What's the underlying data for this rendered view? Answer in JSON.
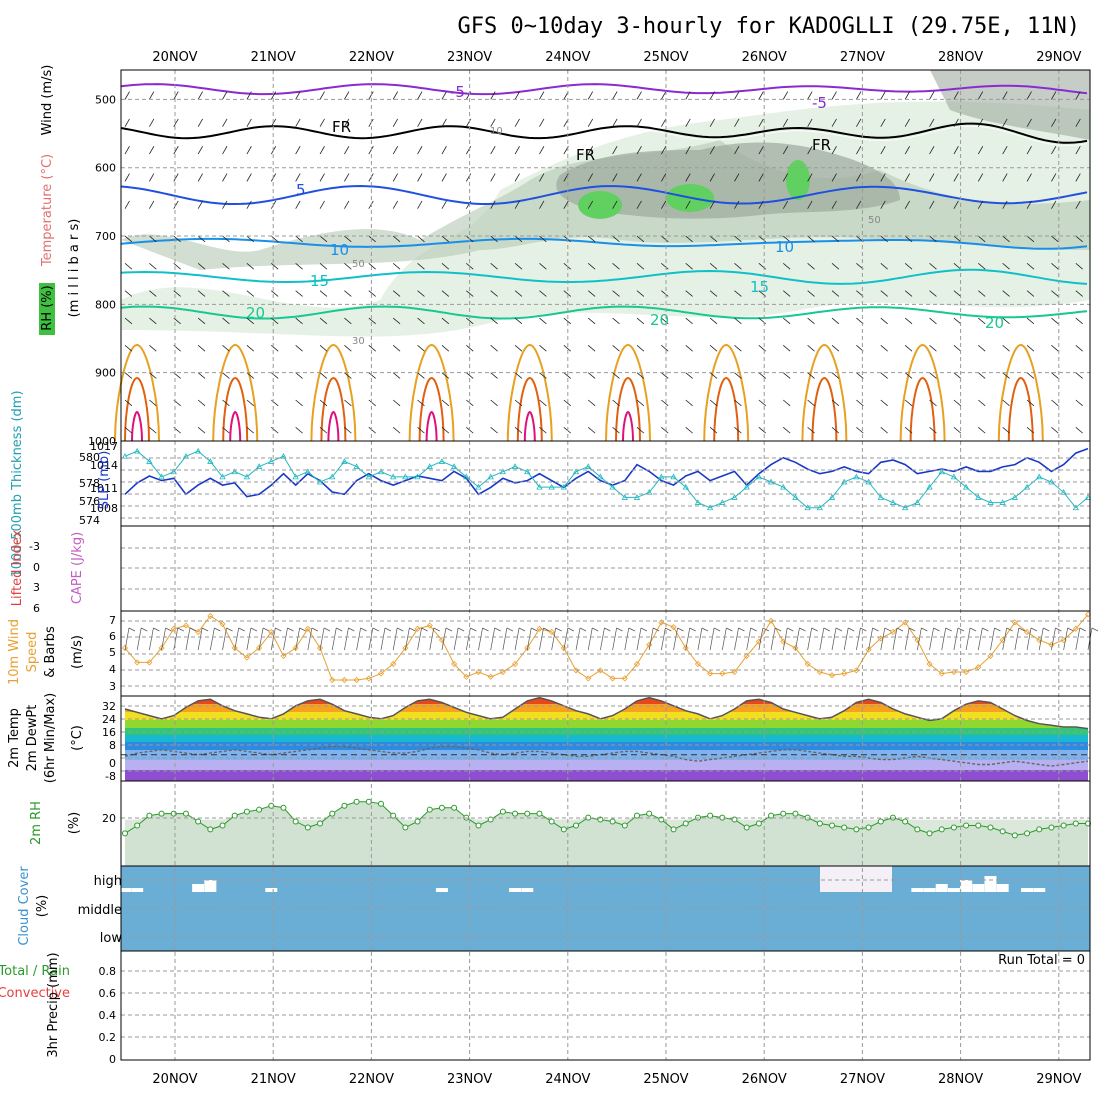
{
  "title": "GFS 0~10day 3-hourly for KADOGLLI (29.75E, 11N)",
  "dates": [
    "20NOV",
    "21NOV",
    "22NOV",
    "23NOV",
    "24NOV",
    "25NOV",
    "26NOV",
    "27NOV",
    "28NOV",
    "29NOV"
  ],
  "colors": {
    "purple": "#8a2bd0",
    "black": "#000000",
    "blue5": "#2050e0",
    "blue10": "#1890e8",
    "cyan15": "#10c0c8",
    "green20": "#18c890",
    "orange": "#e8a020",
    "darkorange": "#e06010",
    "magenta": "#e0107a",
    "rh_light": "#e6f1e6",
    "rh_mid": "#b8ccb8",
    "rh_dark": "#a0aca0",
    "rh_green": "#60d060",
    "slp": "#1838c8",
    "thick": "#20b8c0",
    "wind10": "#e8a030",
    "rh2m": "#2a9a2a",
    "cloud": "#6aaed6",
    "cape": "#c060c0",
    "li": "#e04040"
  },
  "panels": {
    "upper": {
      "labels": {
        "wind": "Wind (m/s)",
        "temp": "Temperature (°C)",
        "mb": "(m i l l i b a r s)",
        "rh": "RH (%)"
      },
      "yticks": [
        "500",
        "600",
        "700",
        "800",
        "900",
        "1000"
      ],
      "contour_labels": {
        "m5": "-5",
        "fr": "FR",
        "p5": "5",
        "p10": "10",
        "p15": "15",
        "p20": "20",
        "rh10": "10",
        "rh30": "30",
        "rh50": "50"
      }
    },
    "thick": {
      "label_thick": "1000-500mb Thickness (dm)",
      "label_slp": "SLP (mb)",
      "yticks_left": [
        "574",
        "576",
        "578",
        "580"
      ],
      "yticks_right": [
        "1008",
        "1011",
        "1014",
        "1017"
      ]
    },
    "cape": {
      "label_li": "Lifted Index",
      "label_cape": "CAPE (J/kg)",
      "yticks": [
        "-3",
        "0",
        "3",
        "6"
      ]
    },
    "wind10m": {
      "label1": "10m Wind",
      "label2": "Speed",
      "label3": "& Barbs",
      "label4": "(m/s)",
      "yticks": [
        "3",
        "4",
        "5",
        "6",
        "7"
      ]
    },
    "temp2m": {
      "label1": "2m Temp",
      "label2": "2m DewPt",
      "label3": "(6hr Min/Max)",
      "label4": "(°C)",
      "yticks": [
        "32",
        "24",
        "16",
        "8",
        "0",
        "-8"
      ]
    },
    "rh2m": {
      "label1": "2m RH",
      "label2": "(%)",
      "yticks": [
        "20"
      ]
    },
    "cloud": {
      "label1": "Cloud Cover",
      "label2": "(%)",
      "levels": [
        "high",
        "middle",
        "low"
      ]
    },
    "precip": {
      "label1": "Total / Rain",
      "label2": "Convective",
      "label3": "3hr Precip (mm)",
      "run_total": "Run Total = 0",
      "yticks": [
        "0.8",
        "0.6",
        "0.4",
        "0.2",
        "0"
      ]
    }
  },
  "chart_data": [
    {
      "type": "line",
      "title": "1000-500mb Thickness (dm) / SLP (mb)",
      "series": [
        {
          "name": "SLP (mb)",
          "values": [
            1008,
            1010.5,
            1012,
            1011,
            1011.5,
            1008,
            1010,
            1011.5,
            1010,
            1010.5,
            1007.5,
            1008,
            1010,
            1012.5,
            1010,
            1012.5,
            1011,
            1008.5,
            1008,
            1011,
            1012.5,
            1011,
            1010,
            1011,
            1012,
            1011.5,
            1011,
            1013,
            1011.5,
            1008,
            1009.5,
            1011.5,
            1010.5,
            1011,
            1012.5,
            1011,
            1009.5,
            1011.5,
            1013,
            1011,
            1010,
            1011,
            1014.5,
            1013,
            1011,
            1010,
            1012,
            1013,
            1011,
            1012,
            1013,
            1010,
            1012.5,
            1014.5,
            1016,
            1015,
            1013.5,
            1012.5,
            1013,
            1014,
            1013,
            1012.5,
            1015,
            1015.5,
            1014.5,
            1012.5,
            1013,
            1013.5,
            1013,
            1014,
            1013,
            1013,
            1014,
            1014.5,
            1016,
            1015,
            1013,
            1014.5,
            1017,
            1018
          ]
        },
        {
          "name": "1000-500mb Thickness (dm)",
          "values": [
            580,
            580.5,
            579.5,
            578,
            578.5,
            580,
            580.5,
            579.5,
            578,
            578.5,
            578,
            579,
            579.5,
            580,
            578,
            578.5,
            577.5,
            578,
            579.5,
            579,
            578,
            578.5,
            578,
            578,
            578,
            579,
            579.5,
            579,
            578,
            577,
            578,
            578.5,
            579,
            578.5,
            577,
            577,
            577,
            578.5,
            579,
            578,
            577,
            576,
            576,
            576.5,
            578,
            578,
            577,
            575.5,
            575,
            575.5,
            576,
            577,
            578,
            577.5,
            577,
            576,
            575,
            575,
            576,
            577.5,
            578,
            577.5,
            576,
            575.5,
            575,
            575.5,
            577,
            578.5,
            578,
            577,
            576,
            575.5,
            575.5,
            576,
            577,
            578,
            577.5,
            576.5,
            575,
            576
          ]
        }
      ]
    },
    {
      "type": "line",
      "title": "10m Wind Speed (m/s)",
      "series": [
        {
          "name": "10m Wind Speed",
          "values": [
            5,
            4.1,
            4.1,
            5,
            6.2,
            6.4,
            6,
            7,
            6.5,
            5,
            4.4,
            5,
            6,
            4.5,
            5,
            6.2,
            5,
            3,
            3,
            3,
            3.1,
            3.4,
            4,
            5,
            6.2,
            6.4,
            5.5,
            4,
            3.2,
            3.5,
            3.2,
            3.5,
            4,
            5,
            6.2,
            6,
            5,
            3.6,
            3.1,
            3.6,
            3.1,
            3.1,
            4,
            5.2,
            6.6,
            6.3,
            5,
            4,
            3.4,
            3.4,
            3.5,
            4.5,
            5.4,
            6.7,
            5.4,
            5,
            4,
            3.5,
            3.3,
            3.4,
            3.6,
            4.9,
            5.6,
            6,
            6.6,
            5.5,
            4,
            3.4,
            3.5,
            3.5,
            3.8,
            4.5,
            5.5,
            6.6,
            6,
            5.5,
            5.2,
            5.5,
            6.2,
            7.1
          ]
        }
      ]
    },
    {
      "type": "area",
      "title": "2m Temp / 2m DewPt (°C)",
      "series": [
        {
          "name": "2m Temp",
          "values": [
            28,
            26,
            24,
            22,
            24,
            29,
            33,
            34,
            30,
            27,
            25,
            23,
            22,
            25,
            30,
            33,
            34,
            31,
            27,
            25,
            23,
            22,
            24,
            29,
            33,
            34,
            32,
            29,
            26,
            24,
            22,
            23,
            28,
            33,
            35,
            33,
            30,
            27,
            25,
            22,
            24,
            28,
            33,
            35,
            33,
            30,
            27,
            25,
            22,
            24,
            28,
            33,
            34,
            32,
            28,
            26,
            24,
            22,
            23,
            27,
            32,
            34,
            32,
            28,
            25,
            23,
            21,
            22,
            27,
            31,
            33,
            32,
            28,
            24,
            21,
            19,
            18,
            17,
            17,
            16
          ]
        },
        {
          "name": "2m DewPt",
          "values": [
            -1,
            1,
            2,
            3,
            2,
            1,
            0,
            1,
            2,
            3,
            2,
            1,
            0,
            1,
            2,
            3,
            4,
            5,
            5,
            4,
            3,
            2,
            1,
            1,
            2,
            4,
            5,
            5,
            4,
            3,
            1,
            0,
            1,
            2,
            2,
            1,
            0,
            -1,
            -1,
            0,
            1,
            2,
            2,
            1,
            0,
            -1,
            -3,
            -4,
            -3,
            -2,
            -1,
            0,
            1,
            2,
            3,
            3,
            2,
            1,
            0,
            -1,
            -1,
            -2,
            -3,
            -3,
            -2,
            -1,
            -2,
            -3,
            -4,
            -5,
            -6,
            -6,
            -5,
            -4,
            -5,
            -6,
            -7,
            -6,
            -5,
            -4
          ]
        }
      ]
    },
    {
      "type": "area",
      "title": "2m RH (%)",
      "series": [
        {
          "name": "2m RH",
          "values": [
            14,
            18,
            23,
            24,
            24,
            24,
            20,
            16,
            18,
            23,
            25,
            26,
            28,
            27,
            20,
            17,
            19,
            24,
            28,
            30,
            30,
            29,
            23,
            17,
            20,
            26,
            27,
            27,
            22,
            18,
            21,
            25,
            24,
            24,
            24,
            20,
            16,
            18,
            22,
            21,
            20,
            18,
            23,
            24,
            21,
            16,
            19,
            22,
            23,
            22,
            21,
            17,
            19,
            23,
            24,
            24,
            22,
            19,
            18,
            17,
            16,
            17,
            20,
            22,
            20,
            16,
            14,
            16,
            17,
            18,
            18,
            17,
            15,
            13,
            14,
            16,
            17,
            18,
            19,
            19
          ]
        }
      ]
    },
    {
      "type": "area",
      "title": "Cloud Cover (%)",
      "series": [
        {
          "name": "high cloud",
          "values": [
            1,
            1,
            0,
            0,
            0,
            0,
            2,
            3,
            0,
            0,
            0,
            0,
            1,
            0,
            0,
            0,
            0,
            0,
            0,
            0,
            0,
            0,
            0,
            0,
            0,
            0,
            1,
            0,
            0,
            0,
            0,
            0,
            1,
            1,
            0,
            0,
            0,
            0,
            0,
            0,
            0,
            0,
            0,
            0,
            0,
            0,
            0,
            0,
            0,
            0,
            0,
            0,
            0,
            0,
            0,
            0,
            0,
            0,
            0,
            0,
            0,
            0,
            0,
            0,
            0,
            1,
            1,
            2,
            1,
            3,
            2,
            4,
            2,
            0,
            1,
            1,
            0,
            0,
            0,
            0
          ]
        }
      ]
    },
    {
      "type": "bar",
      "title": "3hr Precip (mm)",
      "series": [
        {
          "name": "3hr Precip",
          "values": [
            0,
            0,
            0,
            0,
            0,
            0,
            0,
            0,
            0,
            0,
            0,
            0,
            0,
            0,
            0,
            0,
            0,
            0,
            0,
            0,
            0,
            0,
            0,
            0,
            0,
            0,
            0,
            0,
            0,
            0,
            0,
            0,
            0,
            0,
            0,
            0,
            0,
            0,
            0,
            0,
            0,
            0,
            0,
            0,
            0,
            0,
            0,
            0,
            0,
            0,
            0,
            0,
            0,
            0,
            0,
            0,
            0,
            0,
            0,
            0,
            0,
            0,
            0,
            0,
            0,
            0,
            0,
            0,
            0,
            0,
            0,
            0,
            0,
            0,
            0,
            0,
            0,
            0,
            0,
            0
          ]
        }
      ],
      "ylim": [
        0,
        1
      ]
    }
  ]
}
